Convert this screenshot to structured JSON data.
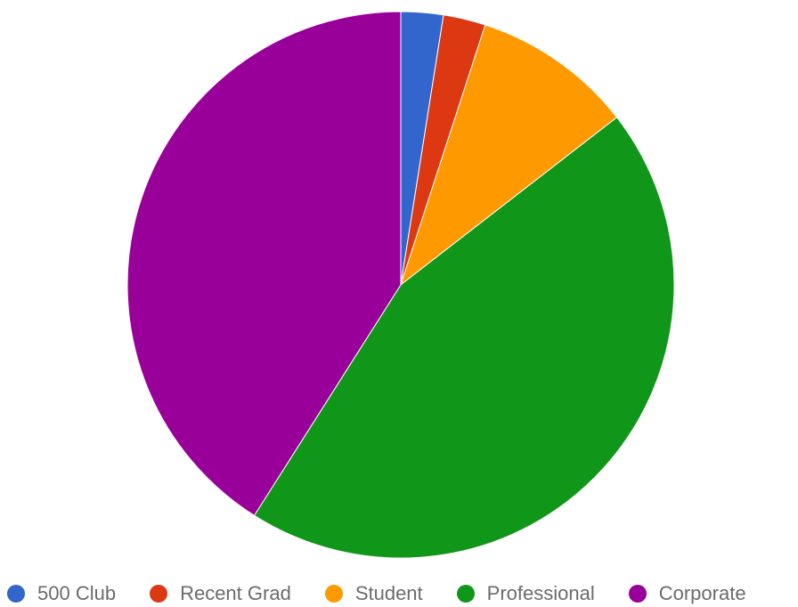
{
  "chart_data": {
    "type": "pie",
    "title": "",
    "legend_position": "bottom",
    "series": [
      {
        "slices": [
          {
            "label": "500 Club",
            "value": 2.5,
            "color": "#3366cc"
          },
          {
            "label": "Recent Grad",
            "value": 2.5,
            "color": "#dc3912"
          },
          {
            "label": "Student",
            "value": 9.5,
            "color": "#ff9900"
          },
          {
            "label": "Professional",
            "value": 44.5,
            "color": "#109618"
          },
          {
            "label": "Corporate",
            "value": 41.0,
            "color": "#990099"
          }
        ]
      }
    ]
  }
}
